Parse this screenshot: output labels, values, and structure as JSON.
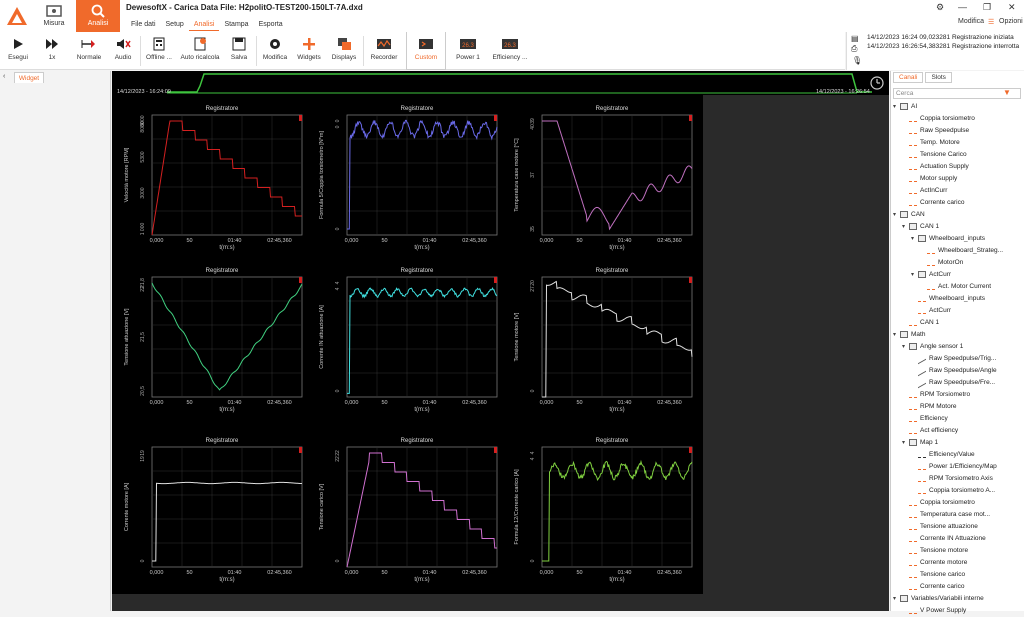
{
  "app": {
    "title": "DewesoftX - Carica Data File: H2politO-TEST200-150LT-7A.dxd",
    "main_tabs": [
      {
        "label": "Misura"
      },
      {
        "label": "Analisi"
      }
    ],
    "menu": [
      "File dati",
      "Setup",
      "Analisi",
      "Stampa",
      "Esporta"
    ],
    "modifica": "Modifica",
    "opzioni": "Opzioni"
  },
  "toolbar": [
    {
      "label": "Esegui",
      "icon": "play-icon"
    },
    {
      "label": "1x",
      "icon": "fast-forward-icon"
    },
    {
      "label": "Normale",
      "icon": "normal-icon"
    },
    {
      "label": "Audio",
      "icon": "audio-mute-icon"
    },
    {
      "label": "Offline ...",
      "icon": "offline-calc-icon"
    },
    {
      "label": "Auto ricalcola",
      "icon": "auto-recalc-icon"
    },
    {
      "label": "Salva",
      "icon": "save-icon"
    },
    {
      "label": "Modifica",
      "icon": "gear-icon"
    },
    {
      "label": "Widgets",
      "icon": "plus-icon"
    },
    {
      "label": "Displays",
      "icon": "displays-icon"
    },
    {
      "label": "Recorder",
      "icon": "recorder-icon"
    },
    {
      "label": "Custom",
      "icon": "custom-icon"
    },
    {
      "label": "Power 1",
      "icon": "display-263-icon",
      "value": "26.3"
    },
    {
      "label": "Efficiency ...",
      "icon": "display-263-icon",
      "value": "26.3"
    }
  ],
  "notifications": [
    "14/12/2023 16:24 09,023281 Registrazione iniziata",
    "14/12/2023 16:26:54,383281 Registrazione interrotta"
  ],
  "left_tab": "Widget",
  "overview": {
    "start": "14/12/2023 - 16:24:09",
    "end": "14/12/2023 - 16:26:54"
  },
  "right_panel": {
    "tabs": [
      "Canali",
      "Slots"
    ],
    "search_placeholder": "Cerca",
    "tree": [
      {
        "label": "AI",
        "level": 0,
        "type": "group"
      },
      {
        "label": "Coppia torsiometro",
        "level": 1,
        "type": "ch"
      },
      {
        "label": "Raw Speedpulse",
        "level": 1,
        "type": "ch"
      },
      {
        "label": "Temp. Motore",
        "level": 1,
        "type": "ch"
      },
      {
        "label": "Tensione Carico",
        "level": 1,
        "type": "ch"
      },
      {
        "label": "Actuation Supply",
        "level": 1,
        "type": "ch"
      },
      {
        "label": "Motor supply",
        "level": 1,
        "type": "ch"
      },
      {
        "label": "ActInCurr",
        "level": 1,
        "type": "ch"
      },
      {
        "label": "Corrente carico",
        "level": 1,
        "type": "ch"
      },
      {
        "label": "CAN",
        "level": 0,
        "type": "group"
      },
      {
        "label": "CAN 1",
        "level": 1,
        "type": "group"
      },
      {
        "label": "Wheelboard_inputs",
        "level": 2,
        "type": "group"
      },
      {
        "label": "Wheelboard_Strateg...",
        "level": 3,
        "type": "ch"
      },
      {
        "label": "MotorOn",
        "level": 3,
        "type": "ch"
      },
      {
        "label": "ActCurr",
        "level": 2,
        "type": "group"
      },
      {
        "label": "Act. Motor Current",
        "level": 3,
        "type": "ch"
      },
      {
        "label": "Wheelboard_inputs",
        "level": 2,
        "type": "ch"
      },
      {
        "label": "ActCurr",
        "level": 2,
        "type": "ch"
      },
      {
        "label": "CAN 1",
        "level": 1,
        "type": "ch"
      },
      {
        "label": "Math",
        "level": 0,
        "type": "group"
      },
      {
        "label": "Angle sensor 1",
        "level": 1,
        "type": "group"
      },
      {
        "label": "Raw Speedpulse/Trig...",
        "level": 2,
        "type": "math"
      },
      {
        "label": "Raw Speedpulse/Angle",
        "level": 2,
        "type": "math"
      },
      {
        "label": "Raw Speedpulse/Fre...",
        "level": 2,
        "type": "math"
      },
      {
        "label": "RPM Torsiometro",
        "level": 1,
        "type": "dot"
      },
      {
        "label": "RPM Motore",
        "level": 1,
        "type": "dot"
      },
      {
        "label": "Efficiency",
        "level": 1,
        "type": "dot"
      },
      {
        "label": "Act efficiency",
        "level": 1,
        "type": "dot"
      },
      {
        "label": "Map 1",
        "level": 1,
        "type": "group"
      },
      {
        "label": "Efficiency/Value",
        "level": 2,
        "type": "grid"
      },
      {
        "label": "Power 1/Efficiency/Map",
        "level": 2,
        "type": "map"
      },
      {
        "label": "RPM Torsiometro Axis",
        "level": 2,
        "type": "ch"
      },
      {
        "label": "Coppia torsiometro A...",
        "level": 2,
        "type": "ch"
      },
      {
        "label": "Coppia torsiometro",
        "level": 1,
        "type": "dot"
      },
      {
        "label": "Temperatura case mot...",
        "level": 1,
        "type": "dot"
      },
      {
        "label": "Tensione attuazione",
        "level": 1,
        "type": "dot"
      },
      {
        "label": "Corrente IN Attuazione",
        "level": 1,
        "type": "dot"
      },
      {
        "label": "Tensione motore",
        "level": 1,
        "type": "dot"
      },
      {
        "label": "Corrente motore",
        "level": 1,
        "type": "dot"
      },
      {
        "label": "Tensione carico",
        "level": 1,
        "type": "dot"
      },
      {
        "label": "Corrente carico",
        "level": 1,
        "type": "dot"
      },
      {
        "label": "Variables/Variabili interne",
        "level": 0,
        "type": "group"
      },
      {
        "label": "V Power Supply",
        "level": 1,
        "type": "ch"
      }
    ]
  },
  "recorders": {
    "title": "Registratore",
    "xlabel": "t(m:s)",
    "xticks": [
      "0,000",
      "50",
      "01:40",
      "02:45,360"
    ],
    "panels": [
      {
        "ylabel": "Velocità motore [RPM]",
        "color": "#d42020",
        "yticks": [
          "1 000",
          "3000",
          "5300",
          "8000"
        ],
        "yhi": "8000"
      },
      {
        "ylabel": "Formula 5/Coppia torsiometro [N*m]",
        "color": "#6a6ae8",
        "yticks": [
          "0",
          "0"
        ],
        "yhi": "0"
      },
      {
        "ylabel": "Temperatura case motore [°C]",
        "color": "#c070c0",
        "yticks": [
          "35",
          "37",
          "39"
        ],
        "yhi": "40"
      },
      {
        "ylabel": "Tensione attuazione [V]",
        "color": "#40d080",
        "yticks": [
          "20,5",
          "21,5",
          "21,8"
        ],
        "yhi": "22"
      },
      {
        "ylabel": "Corrente IN attuazione [A]",
        "color": "#40e0e0",
        "yticks": [
          "0",
          "4"
        ],
        "yhi": "4"
      },
      {
        "ylabel": "Tensione motore [V]",
        "color": "#e0e0e0",
        "yticks": [
          "0",
          "20"
        ],
        "yhi": "27"
      },
      {
        "ylabel": "Corrente motore [A]",
        "color": "#e0e0e0",
        "yticks": [
          "0",
          "19"
        ],
        "yhi": "19"
      },
      {
        "ylabel": "Tensione carico [V]",
        "color": "#d070d0",
        "yticks": [
          "0",
          "22"
        ],
        "yhi": "22"
      },
      {
        "ylabel": "Formula 12/Corrente carico [A]",
        "color": "#80d040",
        "yticks": [
          "0",
          "4"
        ],
        "yhi": "4"
      }
    ]
  }
}
